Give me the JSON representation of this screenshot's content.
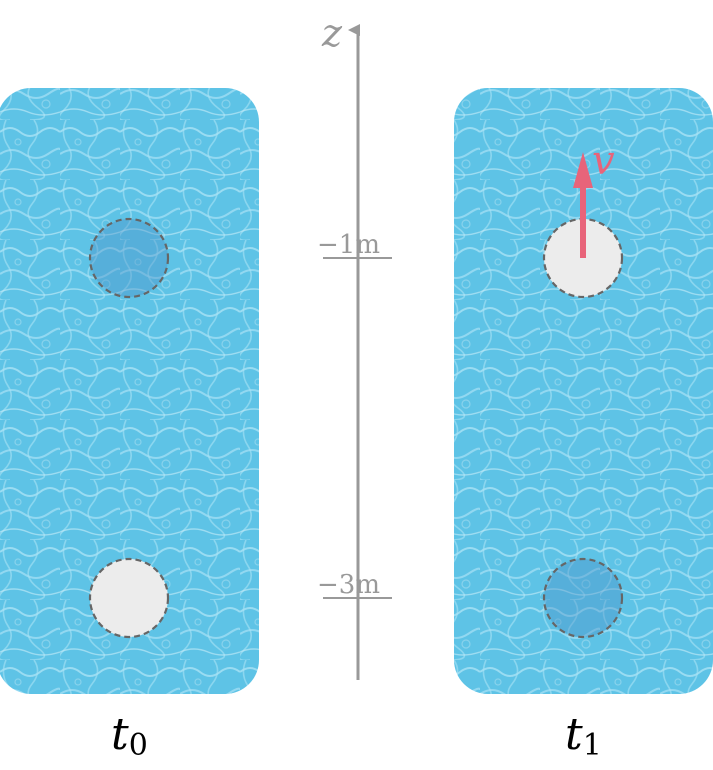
{
  "axis": {
    "label": "z"
  },
  "ticks": [
    {
      "text": "−1m",
      "depth_m": -1
    },
    {
      "text": "−3m",
      "depth_m": -3
    }
  ],
  "panels": [
    {
      "time_symbol": "t",
      "time_subscript": "0",
      "bubbles": [
        {
          "depth_m": -1,
          "state": "empty"
        },
        {
          "depth_m": -3,
          "state": "filled"
        }
      ]
    },
    {
      "time_symbol": "t",
      "time_subscript": "1",
      "bubbles": [
        {
          "depth_m": -1,
          "state": "filled"
        },
        {
          "depth_m": -3,
          "state": "empty"
        }
      ]
    }
  ],
  "velocity": {
    "label": "v",
    "color": "#e8647a"
  },
  "colors": {
    "water": "#5ec3e6",
    "filled_bubble": "#ececec",
    "empty_bubble": "#4a90c8",
    "axis": "#999999"
  }
}
